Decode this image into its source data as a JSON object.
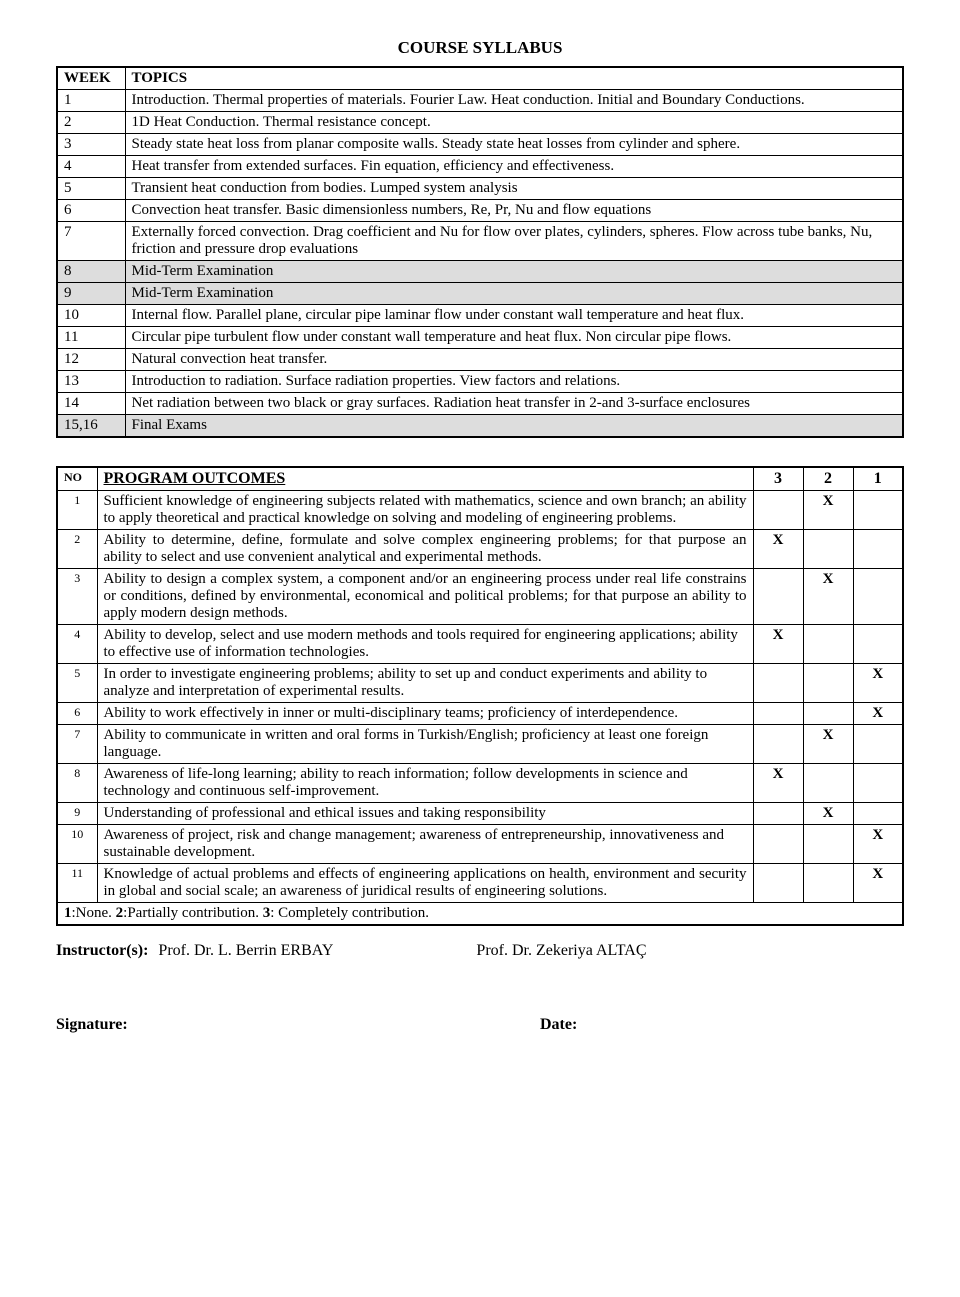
{
  "syllabus": {
    "title": "COURSE SYLLABUS",
    "header_week": "WEEK",
    "header_topics": "TOPICS",
    "rows": [
      {
        "wk": "1",
        "topic": "Introduction. Thermal properties of materials. Fourier Law. Heat conduction. Initial and Boundary Conductions.",
        "gray": false
      },
      {
        "wk": "2",
        "topic": "1D Heat Conduction. Thermal resistance concept.",
        "gray": false
      },
      {
        "wk": "3",
        "topic": "Steady state heat loss from planar composite walls. Steady state heat losses from cylinder and sphere.",
        "gray": false
      },
      {
        "wk": "4",
        "topic": "Heat transfer from extended surfaces. Fin equation, efficiency and effectiveness.",
        "gray": false
      },
      {
        "wk": "5",
        "topic": "Transient heat conduction from bodies. Lumped system analysis",
        "gray": false
      },
      {
        "wk": "6",
        "topic": "Convection heat transfer. Basic dimensionless numbers, Re, Pr, Nu and flow equations",
        "gray": false
      },
      {
        "wk": "7",
        "topic": "Externally forced convection. Drag coefficient and Nu for flow over plates, cylinders, spheres. Flow across tube banks, Nu, friction and pressure drop evaluations",
        "gray": false
      },
      {
        "wk": "8",
        "topic": "Mid-Term Examination",
        "gray": true
      },
      {
        "wk": "9",
        "topic": "Mid-Term Examination",
        "gray": true
      },
      {
        "wk": "10",
        "topic": "Internal flow. Parallel plane, circular pipe laminar flow under constant wall temperature and heat flux.",
        "gray": false
      },
      {
        "wk": "11",
        "topic": "Circular pipe turbulent flow under constant wall temperature and heat flux. Non circular pipe flows.",
        "gray": false
      },
      {
        "wk": "12",
        "topic": "Natural convection heat transfer.",
        "gray": false
      },
      {
        "wk": "13",
        "topic": "Introduction to radiation. Surface radiation properties. View factors and relations.",
        "gray": false
      },
      {
        "wk": "14",
        "topic": "Net radiation between two black or gray surfaces. Radiation heat transfer in 2-and 3-surface enclosures",
        "gray": false
      },
      {
        "wk": "15,16",
        "topic": "Final Exams",
        "gray": true
      }
    ]
  },
  "outcomes": {
    "header_no": "NO",
    "header_title": "PROGRAM OUTCOMES",
    "h3": "3",
    "h2": "2",
    "h1": "1",
    "rows": [
      {
        "no": "1",
        "text": "Sufficient knowledge of engineering subjects related with mathematics, science and own branch; an ability to apply theoretical and practical knowledge on solving and modeling of engineering problems.",
        "c3": "",
        "c2": "X",
        "c1": "",
        "justify": true
      },
      {
        "no": "2",
        "text": "Ability to determine, define, formulate and solve complex engineering problems; for that purpose an ability to select and use convenient analytical and experimental methods.",
        "c3": "X",
        "c2": "",
        "c1": "",
        "justify": true
      },
      {
        "no": "3",
        "text": "Ability to design a complex system, a component and/or an engineering process under real life constrains or conditions, defined by environmental, economical and political problems; for that purpose an ability to apply modern design methods.",
        "c3": "",
        "c2": "X",
        "c1": "",
        "justify": true
      },
      {
        "no": "4",
        "text": "Ability to develop, select and use modern methods and tools required for engineering applications; ability to effective use of information technologies.",
        "c3": "X",
        "c2": "",
        "c1": "",
        "justify": false
      },
      {
        "no": "5",
        "text": "In order to investigate engineering problems; ability to set up and conduct experiments and ability to analyze and interpretation of experimental results.",
        "c3": "",
        "c2": "",
        "c1": "X",
        "justify": false
      },
      {
        "no": "6",
        "text": "Ability to work effectively in inner or multi-disciplinary teams; proficiency of interdependence.",
        "c3": "",
        "c2": "",
        "c1": "X",
        "justify": true
      },
      {
        "no": "7",
        "text": "Ability to communicate in written and oral forms in Turkish/English; proficiency at least one foreign language.",
        "c3": "",
        "c2": "X",
        "c1": "",
        "justify": false
      },
      {
        "no": "8",
        "text": "Awareness of life-long learning; ability to reach information; follow developments in science and technology and continuous self-improvement.",
        "c3": "X",
        "c2": "",
        "c1": "",
        "justify": false
      },
      {
        "no": "9",
        "text": "Understanding of professional and ethical issues and taking responsibility",
        "c3": "",
        "c2": "X",
        "c1": "",
        "justify": false
      },
      {
        "no": "10",
        "text": "Awareness of project, risk and change management; awareness of entrepreneurship, innovativeness and sustainable development.",
        "c3": "",
        "c2": "",
        "c1": "X",
        "justify": false
      },
      {
        "no": "11",
        "text": "Knowledge of actual problems and effects of engineering applications on health, environment and security in global and social scale; an awareness of juridical results of engineering solutions.",
        "c3": "",
        "c2": "",
        "c1": "X",
        "justify": true
      }
    ],
    "legend": "1:None. 2:Partially contribution. 3: Completely contribution."
  },
  "instructors": {
    "label": "Instructor(s):",
    "name1": "Prof. Dr. L. Berrin ERBAY",
    "name2": "Prof. Dr. Zekeriya ALTAÇ"
  },
  "signature_label": "Signature:",
  "date_label": "Date:"
}
